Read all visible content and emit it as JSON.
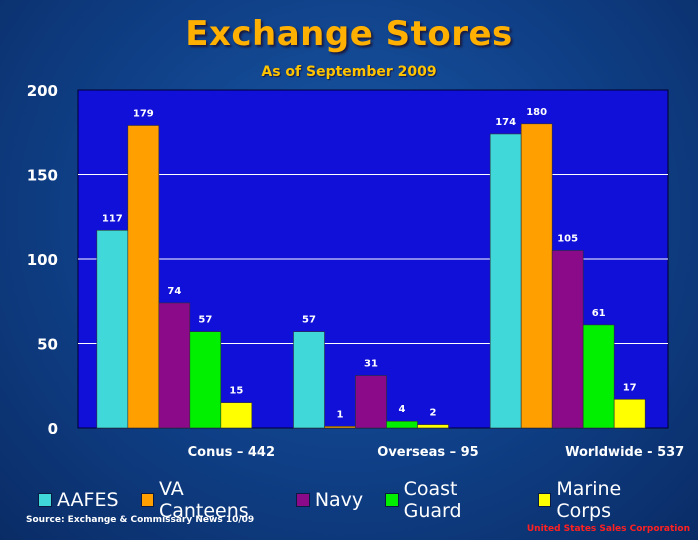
{
  "title": "Exchange Stores",
  "subtitle": "As of September 2009",
  "source": "Source: Exchange & Commissary News 10/09",
  "corporation": "United States Sales Corporation",
  "chart_data": {
    "type": "bar",
    "categories": [
      "Conus – 442",
      "Overseas – 95",
      "Worldwide - 537"
    ],
    "series": [
      {
        "name": "AAFES",
        "values": [
          117,
          57,
          174
        ],
        "color": "#40d8d8"
      },
      {
        "name": "VA Canteens",
        "values": [
          179,
          1,
          180
        ],
        "color": "#ffa000"
      },
      {
        "name": "Navy",
        "values": [
          74,
          31,
          105
        ],
        "color": "#8a0a8a"
      },
      {
        "name": "Coast Guard",
        "values": [
          57,
          4,
          61
        ],
        "color": "#00f000"
      },
      {
        "name": "Marine Corps",
        "values": [
          15,
          2,
          17
        ],
        "color": "#ffff00"
      }
    ],
    "yticks": [
      0,
      50,
      100,
      150,
      200
    ],
    "ylim": [
      0,
      200
    ],
    "grid": true,
    "legend_position": "bottom",
    "plot_background": "#1010d8"
  }
}
